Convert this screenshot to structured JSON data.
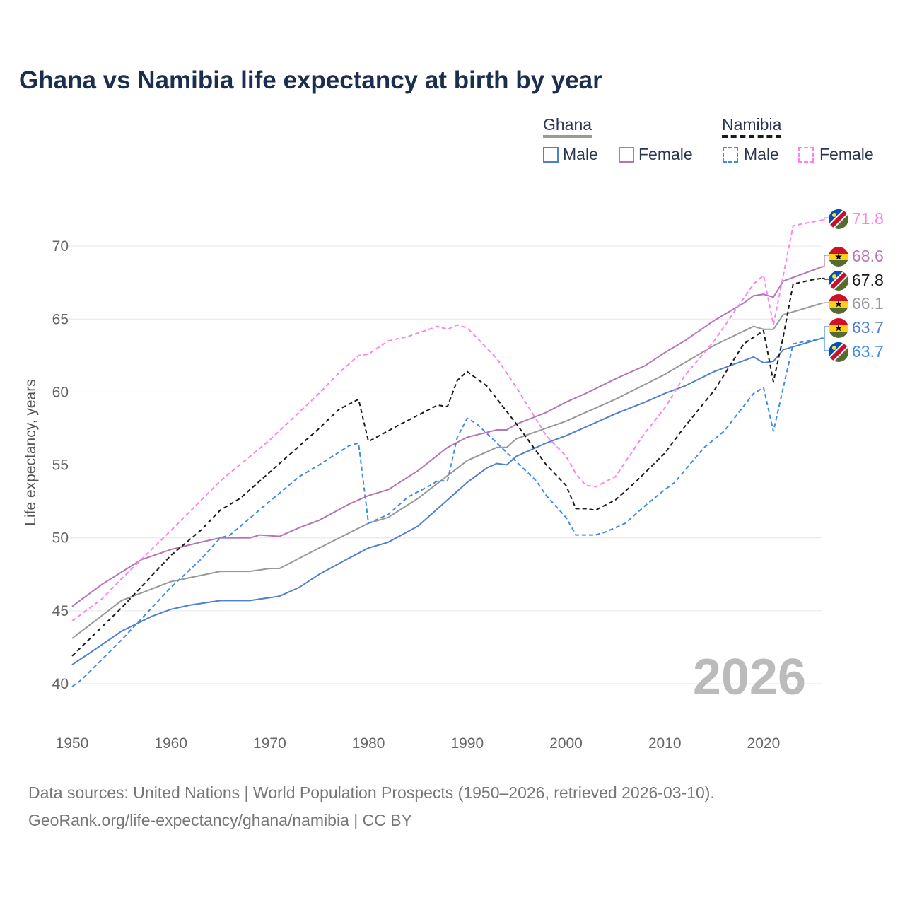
{
  "title": "Ghana vs Namibia life expectancy at birth by year",
  "legend": {
    "ghana": "Ghana",
    "namibia": "Namibia",
    "male": "Male",
    "female": "Female"
  },
  "year_watermark": "2026",
  "sources": {
    "line1": "Data sources: United Nations | World Population Prospects (1950–2026, retrieved 2026-03-10).",
    "line2": "GeoRank.org/life-expectancy/ghana/namibia | CC BY"
  },
  "chart_data": {
    "type": "line",
    "title": "Ghana vs Namibia life expectancy at birth by year",
    "xlabel": "",
    "ylabel": "Life expectancy, years",
    "xlim": [
      1950,
      2026
    ],
    "ylim": [
      38,
      73
    ],
    "xticks": [
      1950,
      1960,
      1970,
      1980,
      1990,
      2000,
      2010,
      2020
    ],
    "yticks": [
      40,
      45,
      50,
      55,
      60,
      65,
      70
    ],
    "grid": true,
    "legend_position": "top-right",
    "series": [
      {
        "name": "Ghana",
        "color": "#999999",
        "dash": false,
        "end_label": "66.1",
        "flag": "ghana",
        "x": [
          1950,
          1955,
          1960,
          1965,
          1968,
          1970,
          1971,
          1975,
          1980,
          1982,
          1985,
          1990,
          1993,
          1994,
          1995,
          2000,
          2005,
          2010,
          2015,
          2019,
          2020,
          2021,
          2022,
          2026
        ],
        "y": [
          43.1,
          45.7,
          47.0,
          47.7,
          47.7,
          47.9,
          47.9,
          49.3,
          51.0,
          51.4,
          52.7,
          55.3,
          56.2,
          56.2,
          56.8,
          58.0,
          59.5,
          61.2,
          63.2,
          64.5,
          64.3,
          64.3,
          65.3,
          66.1
        ]
      },
      {
        "name": "Ghana Male",
        "color": "#4f7fd1",
        "dash": false,
        "end_label": "63.7",
        "flag": "ghana",
        "x": [
          1950,
          1952,
          1955,
          1958,
          1960,
          1962,
          1965,
          1968,
          1971,
          1973,
          1975,
          1978,
          1980,
          1982,
          1985,
          1988,
          1990,
          1992,
          1993,
          1994,
          1995,
          1998,
          2000,
          2002,
          2005,
          2008,
          2010,
          2012,
          2015,
          2019,
          2020,
          2021,
          2022,
          2026
        ],
        "y": [
          41.3,
          42.2,
          43.6,
          44.6,
          45.1,
          45.4,
          45.7,
          45.7,
          46.0,
          46.6,
          47.5,
          48.6,
          49.3,
          49.7,
          50.8,
          52.6,
          53.8,
          54.8,
          55.1,
          55.0,
          55.6,
          56.5,
          57.0,
          57.6,
          58.5,
          59.3,
          59.9,
          60.4,
          61.4,
          62.4,
          62.0,
          62.1,
          62.9,
          63.7
        ]
      },
      {
        "name": "Ghana Female",
        "color": "#b576b5",
        "dash": false,
        "end_label": "68.6",
        "flag": "ghana",
        "x": [
          1950,
          1953,
          1957,
          1960,
          1963,
          1965,
          1968,
          1969,
          1971,
          1973,
          1975,
          1978,
          1980,
          1982,
          1985,
          1988,
          1990,
          1993,
          1994,
          1995,
          1998,
          2000,
          2002,
          2005,
          2008,
          2010,
          2012,
          2015,
          2018,
          2019,
          2020,
          2021,
          2022,
          2026
        ],
        "y": [
          45.3,
          46.8,
          48.5,
          49.2,
          49.7,
          50.0,
          50.0,
          50.2,
          50.1,
          50.7,
          51.2,
          52.3,
          52.9,
          53.3,
          54.6,
          56.2,
          56.9,
          57.4,
          57.4,
          57.8,
          58.6,
          59.3,
          59.9,
          60.9,
          61.8,
          62.7,
          63.5,
          64.9,
          66.1,
          66.6,
          66.7,
          66.5,
          67.6,
          68.6
        ]
      },
      {
        "name": "Namibia",
        "color": "#1a1a1a",
        "dash": true,
        "end_label": "67.8",
        "flag": "namibia",
        "x": [
          1950,
          1955,
          1960,
          1963,
          1965,
          1967,
          1970,
          1975,
          1977,
          1979,
          1980,
          1983,
          1985,
          1987,
          1988,
          1989,
          1990,
          1992,
          1995,
          1998,
          2000,
          2001,
          2002,
          2003,
          2005,
          2007,
          2010,
          2012,
          2015,
          2018,
          2020,
          2021,
          2022,
          2023,
          2025,
          2026
        ],
        "y": [
          41.9,
          45.2,
          48.8,
          50.5,
          51.9,
          52.7,
          54.5,
          57.5,
          58.8,
          59.5,
          56.6,
          57.7,
          58.4,
          59.1,
          59.0,
          60.8,
          61.4,
          60.4,
          57.8,
          55.0,
          53.6,
          52.0,
          52.0,
          51.9,
          52.6,
          53.8,
          55.8,
          57.6,
          60.1,
          63.3,
          64.2,
          60.7,
          63.8,
          67.4,
          67.7,
          67.8
        ]
      },
      {
        "name": "Namibia Male",
        "color": "#3d8bef",
        "dash": true,
        "end_label": "63.7",
        "flag": "namibia",
        "x": [
          1950,
          1951,
          1955,
          1960,
          1963,
          1965,
          1966,
          1970,
          1973,
          1975,
          1978,
          1979,
          1980,
          1982,
          1984,
          1986,
          1987,
          1988,
          1989,
          1990,
          1991,
          1995,
          1997,
          1998,
          2000,
          2001,
          2003,
          2004,
          2006,
          2008,
          2010,
          2011,
          2014,
          2016,
          2019,
          2020,
          2021,
          2023,
          2026
        ],
        "y": [
          39.8,
          40.3,
          43.0,
          46.6,
          48.5,
          50.0,
          50.2,
          52.5,
          54.2,
          55.0,
          56.3,
          56.5,
          51.0,
          51.6,
          52.8,
          53.5,
          53.9,
          53.9,
          56.9,
          58.2,
          57.8,
          55.2,
          53.9,
          52.9,
          51.4,
          50.2,
          50.2,
          50.4,
          51.0,
          52.2,
          53.3,
          53.8,
          56.2,
          57.3,
          59.9,
          60.3,
          57.3,
          63.3,
          63.7
        ]
      },
      {
        "name": "Namibia Female",
        "color": "#ff80ee",
        "dash": true,
        "end_label": "71.8",
        "flag": "namibia",
        "x": [
          1950,
          1953,
          1955,
          1960,
          1965,
          1970,
          1975,
          1977,
          1979,
          1980,
          1982,
          1984,
          1987,
          1988,
          1989,
          1990,
          1993,
          1995,
          1998,
          2000,
          2001,
          2002,
          2003,
          2005,
          2008,
          2010,
          2012,
          2015,
          2019,
          2020,
          2021,
          2023,
          2026
        ],
        "y": [
          44.3,
          45.8,
          47.2,
          50.5,
          53.9,
          56.7,
          59.9,
          61.3,
          62.5,
          62.6,
          63.5,
          63.8,
          64.5,
          64.3,
          64.6,
          64.4,
          62.3,
          60.3,
          57.0,
          55.6,
          54.4,
          53.6,
          53.5,
          54.2,
          57.2,
          58.9,
          61.1,
          63.5,
          67.4,
          68.0,
          64.6,
          71.4,
          71.8
        ]
      }
    ]
  }
}
